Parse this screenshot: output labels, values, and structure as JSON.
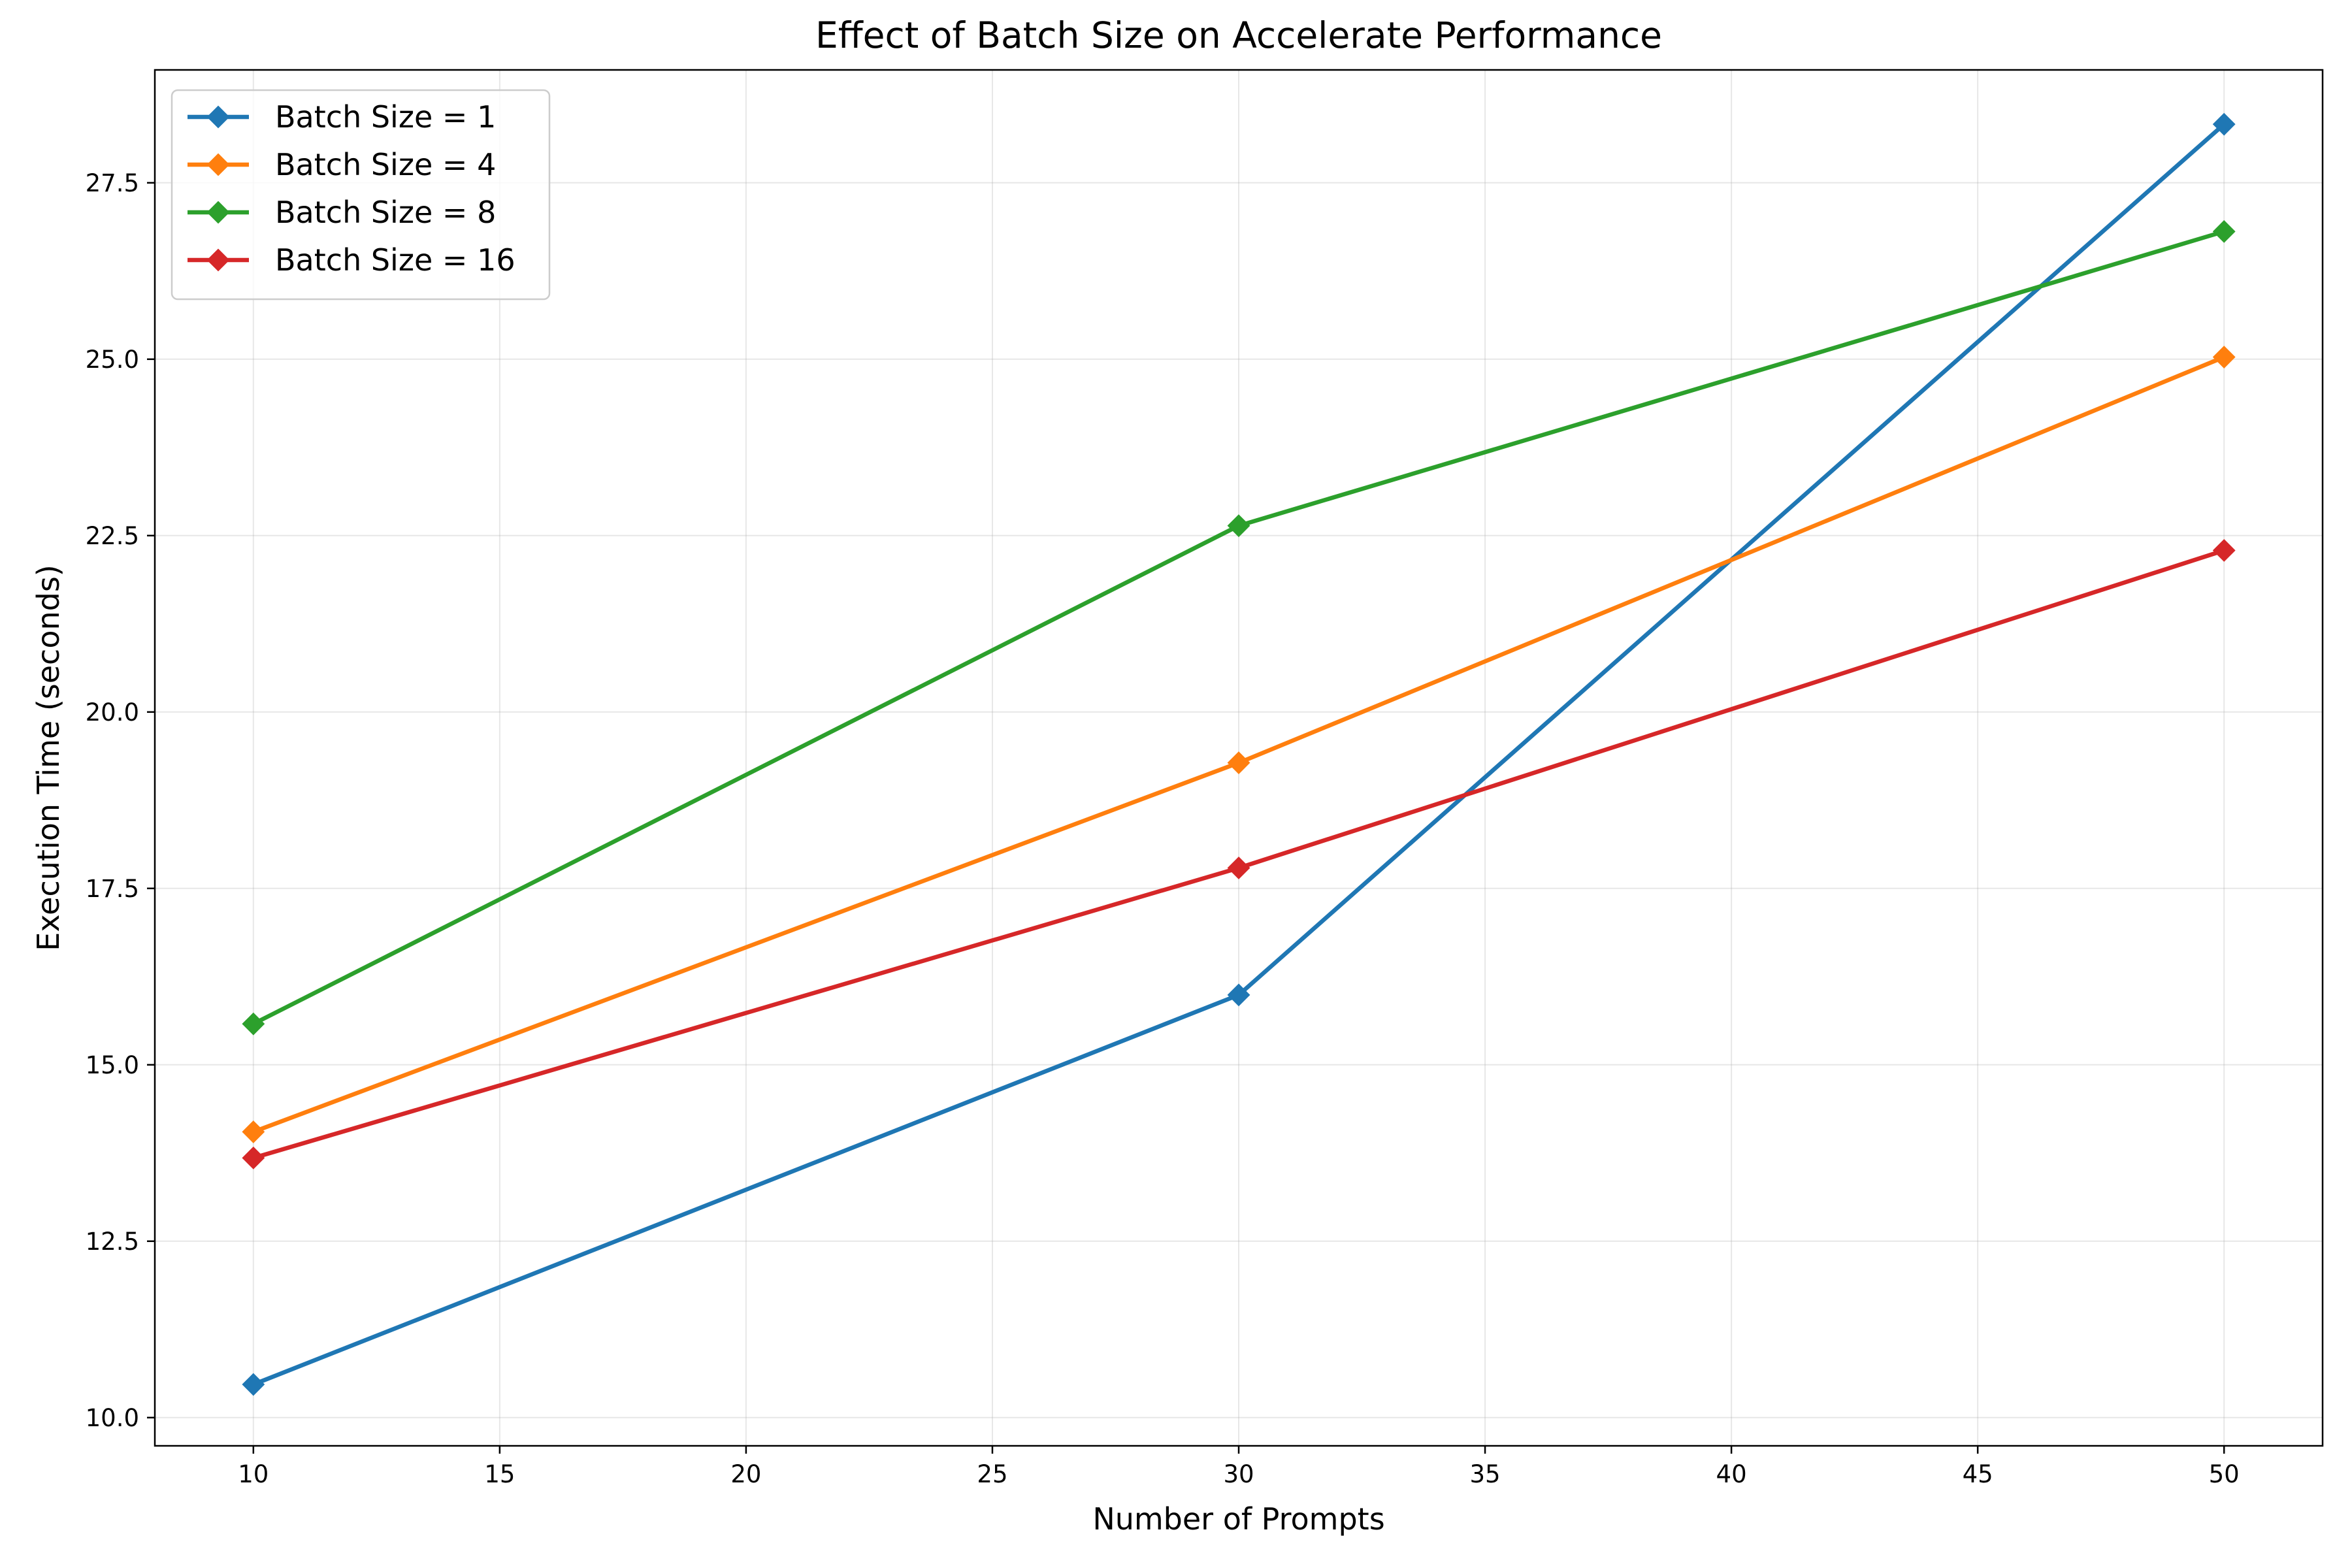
{
  "chart_data": {
    "type": "line",
    "title": "Effect of Batch Size on Accelerate Performance",
    "xlabel": "Number of Prompts",
    "ylabel": "Execution Time (seconds)",
    "x": [
      10,
      30,
      50
    ],
    "xlim": [
      8,
      52
    ],
    "ylim": [
      9.6,
      29.1
    ],
    "xticks": [
      10,
      15,
      20,
      25,
      30,
      35,
      40,
      45,
      50
    ],
    "yticks": [
      10.0,
      12.5,
      15.0,
      17.5,
      20.0,
      22.5,
      25.0,
      27.5
    ],
    "ytick_labels": [
      "10.0",
      "12.5",
      "15.0",
      "17.5",
      "20.0",
      "22.5",
      "25.0",
      "27.5"
    ],
    "grid": true,
    "legend_position": "top-left",
    "marker": "diamond",
    "series": [
      {
        "name": "Batch Size = 1",
        "color": "#1f77b4",
        "values": [
          10.47,
          15.99,
          28.33
        ]
      },
      {
        "name": "Batch Size = 4",
        "color": "#ff7f0e",
        "values": [
          14.05,
          19.28,
          25.03
        ]
      },
      {
        "name": "Batch Size = 8",
        "color": "#2ca02c",
        "values": [
          15.58,
          22.64,
          26.81
        ]
      },
      {
        "name": "Batch Size = 16",
        "color": "#d62728",
        "values": [
          13.68,
          17.79,
          22.29
        ]
      }
    ]
  }
}
